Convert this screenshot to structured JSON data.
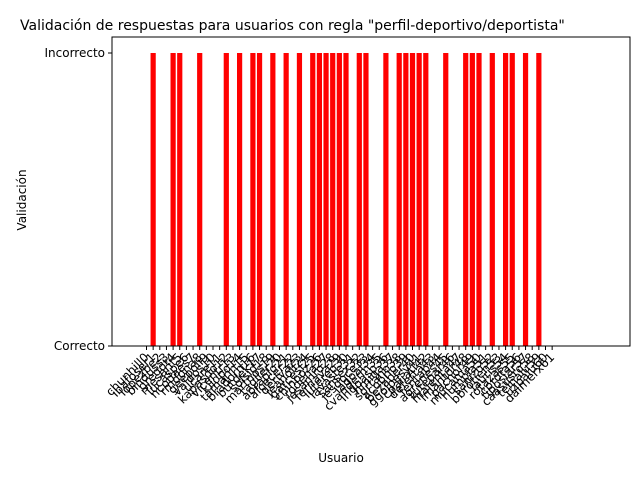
{
  "chart_data": {
    "type": "bar",
    "title": "Validación de respuestas para usuarios con regla \"perfil-deportivo/deportista\"",
    "xlabel": "Usuario",
    "ylabel": "Validación",
    "y_tick_labels": [
      "Correcto",
      "Incorrecto"
    ],
    "ylim": [
      0,
      1
    ],
    "grid": false,
    "legend": "none",
    "colors": {
      "bar": "#ff0000",
      "axis": "#000000"
    },
    "categories": [
      "chunhill0",
      "ibafoser1",
      "lopezbe2",
      "binduss3",
      "gregot4",
      "mesarit5",
      "lucaspe6",
      "ncodaes7",
      "rmdona8",
      "geepoli9",
      "valdos10",
      "ucare11",
      "kapasdo12",
      "vicentr13",
      "kilopo14",
      "tamarin15",
      "bradorn16",
      "butdek17",
      "solsid18",
      "martnos19",
      "tagiler20",
      "aoraplo21",
      "alcecer22",
      "deriva23",
      "jeanoli24",
      "garcesi25",
      "chinooz26",
      "rodena27",
      "jesamro28",
      "fernava29",
      "lutereo30",
      "lavaste31",
      "sansex32",
      "jesdoce33",
      "iagoal34",
      "cvanderm35",
      "ingoasp36",
      "hmiga37",
      "sortano38",
      "acobrio39",
      "bezaber40",
      "ggolpesy41",
      "cpaliati42",
      "deferta43",
      "fentab44",
      "agrenes45",
      "tutepar46",
      "malenta47",
      "lmantor48",
      "pachor49",
      "mucama50",
      "humpla51",
      "sanizo52",
      "bbrotien53",
      "lauris54",
      "rotazas55",
      "corota56",
      "tiposiar57",
      "caasusro58",
      "telnalu59",
      "uzpalu60",
      "dalmerx61"
    ],
    "values": [
      0,
      1,
      0,
      0,
      1,
      1,
      0,
      0,
      1,
      0,
      0,
      0,
      1,
      0,
      1,
      0,
      1,
      1,
      0,
      1,
      0,
      1,
      0,
      1,
      0,
      1,
      1,
      1,
      1,
      1,
      1,
      0,
      1,
      1,
      0,
      0,
      1,
      0,
      1,
      1,
      1,
      1,
      1,
      0,
      0,
      1,
      0,
      0,
      1,
      1,
      1,
      0,
      1,
      0,
      1,
      1,
      0,
      1,
      0,
      1,
      0,
      0
    ]
  }
}
